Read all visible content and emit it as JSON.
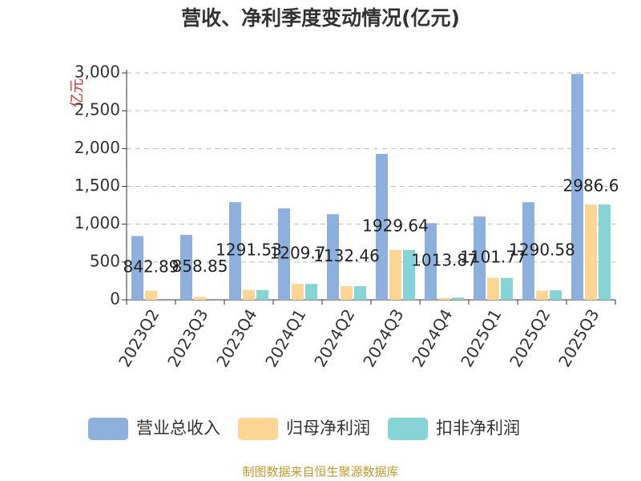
{
  "chart_data": {
    "type": "bar",
    "title": "营收、净利季度变动情况(亿元)",
    "y_label": "亿元",
    "categories": [
      "2023Q2",
      "2023Q3",
      "2023Q4",
      "2024Q1",
      "2024Q2",
      "2024Q3",
      "2024Q4",
      "2025Q1",
      "2025Q2",
      "2025Q3"
    ],
    "series": [
      {
        "name": "营业总收入",
        "color": "#8eb0dc",
        "values": [
          842.89,
          858.85,
          1291.53,
          1209.7,
          1132.46,
          1929.64,
          1013.87,
          1101.77,
          1290.58,
          2986.6
        ]
      },
      {
        "name": "归母净利润",
        "color": "#fdd594",
        "values": [
          120,
          40,
          130,
          210,
          180,
          660,
          25,
          290,
          120,
          1260
        ]
      },
      {
        "name": "扣非净利润",
        "color": "#86d4d5",
        "values": [
          null,
          null,
          130,
          210,
          180,
          660,
          30,
          290,
          125,
          1260
        ]
      }
    ],
    "ylim": [
      0,
      3000
    ],
    "yticks": [
      0,
      500,
      {
        "value": 1000,
        "label": "1,000"
      },
      {
        "value": 1500,
        "label": "1,500"
      },
      {
        "value": 2000,
        "label": "2,000"
      },
      {
        "value": 2500,
        "label": "2,500"
      },
      {
        "value": 3000,
        "label": "3,000"
      }
    ],
    "grid": true,
    "source": "制图数据来自恒生聚源数据库"
  }
}
